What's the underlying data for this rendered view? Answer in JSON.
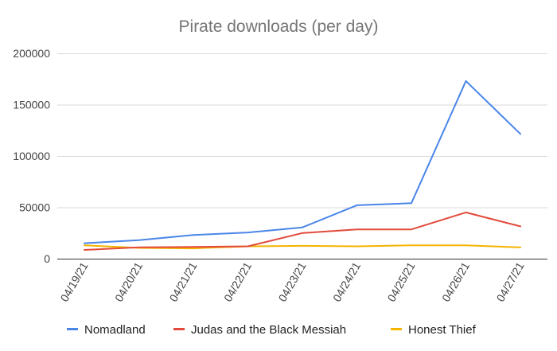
{
  "chart_data": {
    "type": "line",
    "title": "Pirate downloads (per day)",
    "xlabel": "",
    "ylabel": "",
    "categories": [
      "04/19/21",
      "04/20/21",
      "04/21/21",
      "04/22/21",
      "04/23/21",
      "04/24/21",
      "04/25/21",
      "04/26/21",
      "04/27/21"
    ],
    "ylim": [
      0,
      200000
    ],
    "yticks": [
      "0",
      "50000",
      "100000",
      "150000",
      "200000"
    ],
    "grid": true,
    "legend_position": "bottom",
    "series": [
      {
        "name": "Nomadland",
        "color": "#4a86e8",
        "values": [
          15000,
          18000,
          23000,
          25500,
          30500,
          52000,
          54000,
          173000,
          121500
        ]
      },
      {
        "name": "Judas and the Black Messiah",
        "color": "#e24a3b",
        "values": [
          8500,
          11000,
          11500,
          12000,
          25000,
          28500,
          28500,
          45000,
          31500
        ]
      },
      {
        "name": "Honest Thief",
        "color": "#f4b400",
        "values": [
          13000,
          10500,
          10000,
          12000,
          12500,
          12000,
          13000,
          13000,
          11000
        ]
      }
    ]
  }
}
